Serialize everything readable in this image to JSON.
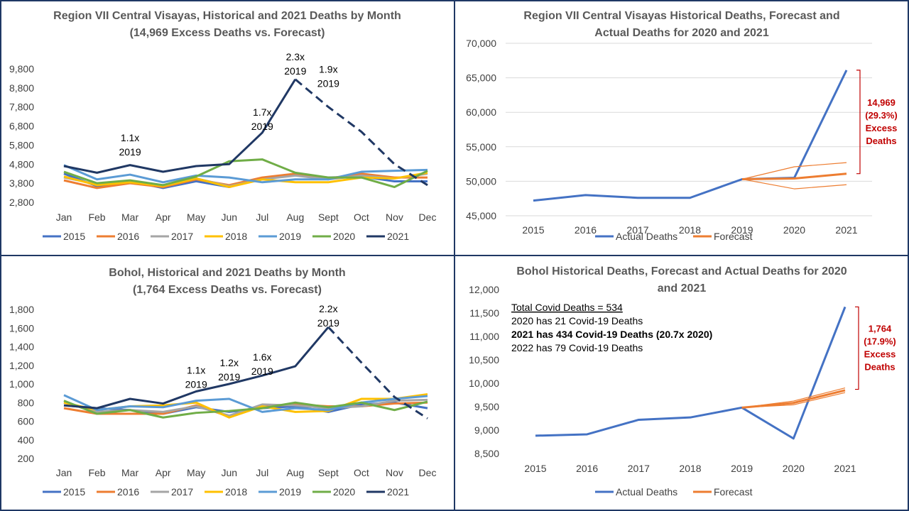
{
  "colors": {
    "border": "#1f3864",
    "title": "#595959",
    "axis_text": "#404040",
    "grid": "#d9d9d9",
    "annotation_red": "#c00000",
    "series": {
      "2015": "#4472c4",
      "2016": "#ed7d31",
      "2017": "#a5a5a5",
      "2018": "#ffc000",
      "2019": "#5b9bd5",
      "2020": "#70ad47",
      "2021": "#203864",
      "Actual Deaths": "#4472c4",
      "Forecast": "#ed7d31"
    }
  },
  "chart_data": [
    {
      "id": "region_monthly",
      "type": "line",
      "title_lines": [
        "Region VII Central Visayas, Historical and 2021 Deaths by Month",
        "(14,969 Excess Deaths vs. Forecast)"
      ],
      "categories": [
        "Jan",
        "Feb",
        "Mar",
        "Apr",
        "May",
        "Jun",
        "Jul",
        "Aug",
        "Sept",
        "Oct",
        "Nov",
        "Dec"
      ],
      "ylim": [
        2800,
        9800
      ],
      "yticks": [
        2800,
        3800,
        4800,
        5800,
        6800,
        7800,
        8800,
        9800
      ],
      "ytick_labels": [
        "2,800",
        "3,800",
        "4,800",
        "5,800",
        "6,800",
        "7,800",
        "8,800",
        "9,800"
      ],
      "grid": false,
      "legend": "bottom",
      "series": [
        {
          "name": "2015",
          "values": [
            4300,
            3650,
            3900,
            3550,
            3900,
            3600,
            4050,
            4250,
            4100,
            4150,
            3900,
            3900
          ]
        },
        {
          "name": "2016",
          "values": [
            3950,
            3550,
            3800,
            3600,
            4000,
            3700,
            4100,
            4300,
            4050,
            4300,
            4100,
            4100
          ]
        },
        {
          "name": "2017",
          "values": [
            4100,
            3750,
            3850,
            3700,
            4050,
            3650,
            4000,
            4200,
            4000,
            4200,
            4050,
            4300
          ]
        },
        {
          "name": "2018",
          "values": [
            4150,
            3700,
            3850,
            3650,
            4050,
            3600,
            4000,
            3850,
            3850,
            4100,
            4050,
            4350
          ]
        },
        {
          "name": "2019",
          "values": [
            4750,
            4000,
            4250,
            3850,
            4200,
            4100,
            3850,
            4000,
            4000,
            4400,
            4450,
            4500
          ]
        },
        {
          "name": "2020",
          "values": [
            4400,
            3800,
            3950,
            3700,
            4150,
            4950,
            5050,
            4350,
            4100,
            4100,
            3600,
            4450
          ]
        },
        {
          "name": "2021",
          "values": [
            4700,
            4350,
            4750,
            4400,
            4700,
            4800,
            6450,
            9250,
            7800,
            6500,
            4800,
            3700
          ],
          "solid_until": 7
        }
      ],
      "annotations": [
        {
          "text": [
            "1.1x",
            "2019"
          ],
          "category": "Mar",
          "value": 6000
        },
        {
          "text": [
            "1.7x",
            "2019"
          ],
          "category": "Jul",
          "value": 7350
        },
        {
          "text": [
            "2.3x",
            "2019"
          ],
          "category": "Aug",
          "value": 10250
        },
        {
          "text": [
            "1.9x",
            "2019"
          ],
          "category": "Sept",
          "value": 9600
        }
      ]
    },
    {
      "id": "region_yearly",
      "type": "line",
      "title_lines": [
        "Region VII Central Visayas Historical Deaths, Forecast and",
        "Actual Deaths for 2020 and 2021"
      ],
      "categories": [
        "2015",
        "2016",
        "2017",
        "2018",
        "2019",
        "2020",
        "2021"
      ],
      "ylim": [
        45000,
        70000
      ],
      "yticks": [
        45000,
        50000,
        55000,
        60000,
        65000,
        70000
      ],
      "ytick_labels": [
        "45,000",
        "50,000",
        "55,000",
        "60,000",
        "65,000",
        "70,000"
      ],
      "grid": true,
      "legend": "bottom",
      "series": [
        {
          "name": "Actual Deaths",
          "values": [
            47200,
            48000,
            47600,
            47600,
            50300,
            50500,
            66100
          ]
        },
        {
          "name": "Forecast",
          "values": [
            null,
            null,
            null,
            null,
            50300,
            50400,
            51100
          ]
        },
        {
          "name": "upper",
          "values": [
            null,
            null,
            null,
            null,
            50300,
            52100,
            52700
          ],
          "thin": true
        },
        {
          "name": "lower",
          "values": [
            null,
            null,
            null,
            null,
            50300,
            48900,
            49500
          ],
          "thin": true
        }
      ],
      "legend_entries": [
        "Actual Deaths",
        "Forecast"
      ],
      "excess_bracket": {
        "category": "2021",
        "from": 51100,
        "to": 66100,
        "text": [
          "14,969",
          "(29.3%)",
          "Excess",
          "Deaths"
        ]
      }
    },
    {
      "id": "bohol_monthly",
      "type": "line",
      "title_lines": [
        "Bohol, Historical and 2021 Deaths by Month",
        "(1,764 Excess Deaths vs. Forecast)"
      ],
      "categories": [
        "Jan",
        "Feb",
        "Mar",
        "Apr",
        "May",
        "Jun",
        "Jul",
        "Aug",
        "Sept",
        "Oct",
        "Nov",
        "Dec"
      ],
      "ylim": [
        200,
        1800
      ],
      "yticks": [
        200,
        400,
        600,
        800,
        1000,
        1200,
        1400,
        1600,
        1800
      ],
      "ytick_labels": [
        "200",
        "400",
        "600",
        "800",
        "1,000",
        "1,200",
        "1,400",
        "1,600",
        "1,800"
      ],
      "grid": false,
      "legend": "bottom",
      "series": [
        {
          "name": "2015",
          "values": [
            770,
            740,
            720,
            680,
            750,
            700,
            740,
            760,
            700,
            780,
            800,
            740
          ]
        },
        {
          "name": "2016",
          "values": [
            740,
            680,
            680,
            680,
            770,
            650,
            760,
            780,
            760,
            760,
            790,
            800
          ]
        },
        {
          "name": "2017",
          "values": [
            800,
            700,
            720,
            700,
            760,
            660,
            780,
            770,
            740,
            760,
            820,
            830
          ]
        },
        {
          "name": "2018",
          "values": [
            800,
            720,
            760,
            770,
            800,
            640,
            760,
            700,
            710,
            840,
            840,
            890
          ]
        },
        {
          "name": "2019",
          "values": [
            880,
            720,
            760,
            750,
            820,
            840,
            700,
            740,
            720,
            800,
            840,
            870
          ]
        },
        {
          "name": "2020",
          "values": [
            820,
            680,
            720,
            640,
            690,
            710,
            740,
            800,
            750,
            800,
            720,
            810
          ]
        },
        {
          "name": "2021",
          "values": [
            770,
            740,
            840,
            790,
            920,
            1000,
            1090,
            1190,
            1610,
            1230,
            860,
            630
          ],
          "solid_until": 8
        }
      ],
      "annotations": [
        {
          "text": [
            "1.1x",
            "2019"
          ],
          "category": "May",
          "value": 1110
        },
        {
          "text": [
            "1.2x",
            "2019"
          ],
          "category": "Jun",
          "value": 1190
        },
        {
          "text": [
            "1.6x",
            "2019"
          ],
          "category": "Jul",
          "value": 1250
        },
        {
          "text": [
            "2.2x",
            "2019"
          ],
          "category": "Sept",
          "value": 1770
        }
      ]
    },
    {
      "id": "bohol_yearly",
      "type": "line",
      "title_lines": [
        "Bohol Historical Deaths, Forecast and Actual Deaths for 2020",
        "and 2021"
      ],
      "categories": [
        "2015",
        "2016",
        "2017",
        "2018",
        "2019",
        "2020",
        "2021"
      ],
      "ylim": [
        8500,
        12000
      ],
      "yticks": [
        8500,
        9000,
        9500,
        10000,
        10500,
        11000,
        11500,
        12000
      ],
      "ytick_labels": [
        "8,500",
        "9,000",
        "9,500",
        "10,000",
        "10,500",
        "11,000",
        "11,500",
        "12,000"
      ],
      "grid": false,
      "legend": "bottom",
      "series": [
        {
          "name": "Actual Deaths",
          "values": [
            8880,
            8910,
            9220,
            9270,
            9480,
            8820,
            11630
          ]
        },
        {
          "name": "Forecast",
          "values": [
            null,
            null,
            null,
            null,
            9480,
            9580,
            9850
          ]
        },
        {
          "name": "upper",
          "values": [
            null,
            null,
            null,
            null,
            9480,
            9620,
            9900
          ],
          "thin": true
        },
        {
          "name": "lower",
          "values": [
            null,
            null,
            null,
            null,
            9480,
            9540,
            9800
          ],
          "thin": true
        }
      ],
      "legend_entries": [
        "Actual Deaths",
        "Forecast"
      ],
      "excess_bracket": {
        "category": "2021",
        "from": 9870,
        "to": 11630,
        "text": [
          "1,764",
          "(17.9%)",
          "Excess",
          "Deaths"
        ]
      },
      "info_box": [
        {
          "text": "Total Covid Deaths = 534",
          "style": "underline"
        },
        {
          "text": "2020 has 21 Covid-19 Deaths",
          "style": "normal"
        },
        {
          "text": "2021 has 434 Covid-19 Deaths (20.7x 2020)",
          "style": "bold"
        },
        {
          "text": "2022 has 79 Covid-19 Deaths",
          "style": "normal"
        }
      ]
    }
  ]
}
